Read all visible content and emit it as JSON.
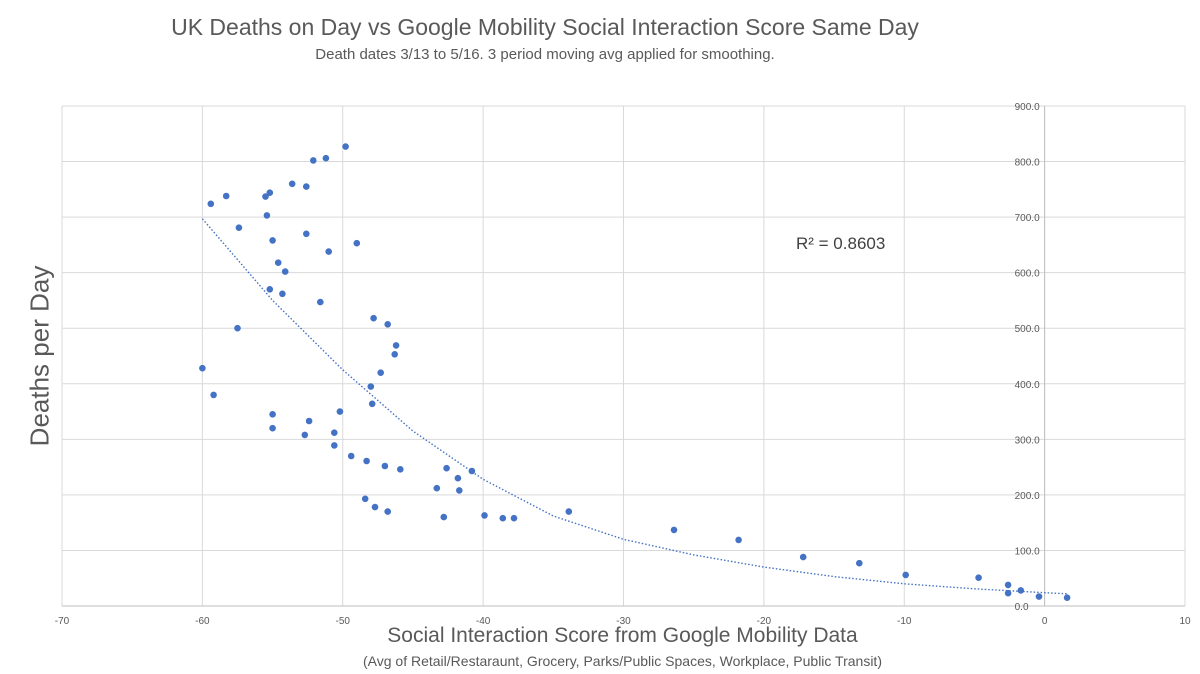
{
  "chart_data": {
    "type": "scatter",
    "title": "UK Deaths on Day vs Google Mobility Social Interaction Score Same Day",
    "subtitle": "Death dates 3/13 to 5/16.  3 period moving avg applied for smoothing.",
    "xlabel": "Social Interaction Score from Google Mobility Data",
    "xlabel_sub": "(Avg of Retail/Restaraunt, Grocery, Parks/Public Spaces, Workplace, Public Transit)",
    "ylabel": "Deaths per Day",
    "xlim": [
      -70,
      10
    ],
    "ylim": [
      0,
      900
    ],
    "x_ticks": [
      -70,
      -60,
      -50,
      -40,
      -30,
      -20,
      -10,
      0,
      10
    ],
    "x_tick_labels": [
      "-70",
      "-60",
      "-50",
      "-40",
      "-30",
      "-20",
      "-10",
      "0",
      "10"
    ],
    "y_ticks": [
      0,
      100,
      200,
      300,
      400,
      500,
      600,
      700,
      800,
      900
    ],
    "y_tick_labels": [
      "0.0",
      "100.0",
      "200.0",
      "300.0",
      "400.0",
      "500.0",
      "600.0",
      "700.0",
      "800.0",
      "900.0"
    ],
    "y_axis_position": "right",
    "grid": true,
    "point_color": "#4472c4",
    "trendline_color": "#4472c4",
    "trendline": {
      "type": "exponential",
      "label": "R² = 0.8603",
      "points": [
        [
          -60,
          697
        ],
        [
          -55,
          550
        ],
        [
          -50,
          425
        ],
        [
          -45,
          315
        ],
        [
          -40,
          228
        ],
        [
          -35,
          162
        ],
        [
          -30,
          120
        ],
        [
          -25,
          92
        ],
        [
          -20,
          70
        ],
        [
          -15,
          53
        ],
        [
          -10,
          40
        ],
        [
          -5,
          31
        ],
        [
          0,
          24
        ],
        [
          1.6,
          22
        ]
      ]
    },
    "points": [
      [
        -60.0,
        428
      ],
      [
        -59.2,
        380
      ],
      [
        -59.4,
        724
      ],
      [
        -58.3,
        738
      ],
      [
        -57.5,
        500
      ],
      [
        -57.4,
        681
      ],
      [
        -55.5,
        737
      ],
      [
        -55.2,
        744
      ],
      [
        -55.4,
        703
      ],
      [
        -55.0,
        658
      ],
      [
        -55.2,
        570
      ],
      [
        -55.0,
        345
      ],
      [
        -55.0,
        320
      ],
      [
        -54.6,
        618
      ],
      [
        -54.3,
        562
      ],
      [
        -54.1,
        602
      ],
      [
        -53.6,
        760
      ],
      [
        -52.6,
        755
      ],
      [
        -52.6,
        670
      ],
      [
        -52.7,
        308
      ],
      [
        -52.4,
        333
      ],
      [
        -52.1,
        802
      ],
      [
        -51.6,
        547
      ],
      [
        -51.2,
        806
      ],
      [
        -51.0,
        638
      ],
      [
        -50.6,
        312
      ],
      [
        -50.6,
        289
      ],
      [
        -50.2,
        350
      ],
      [
        -49.8,
        827
      ],
      [
        -49.4,
        270
      ],
      [
        -49.0,
        653
      ],
      [
        -48.4,
        193
      ],
      [
        -48.3,
        261
      ],
      [
        -48.0,
        395
      ],
      [
        -47.9,
        364
      ],
      [
        -47.8,
        518
      ],
      [
        -47.7,
        178
      ],
      [
        -47.3,
        420
      ],
      [
        -47.0,
        252
      ],
      [
        -46.8,
        507
      ],
      [
        -46.8,
        170
      ],
      [
        -46.3,
        453
      ],
      [
        -46.2,
        469
      ],
      [
        -45.9,
        246
      ],
      [
        -43.3,
        212
      ],
      [
        -42.8,
        160
      ],
      [
        -42.6,
        248
      ],
      [
        -41.8,
        230
      ],
      [
        -41.7,
        208
      ],
      [
        -40.8,
        243
      ],
      [
        -39.9,
        163
      ],
      [
        -38.6,
        158
      ],
      [
        -37.8,
        158
      ],
      [
        -33.9,
        170
      ],
      [
        -26.4,
        137
      ],
      [
        -21.8,
        119
      ],
      [
        -17.2,
        88
      ],
      [
        -13.2,
        77
      ],
      [
        -9.9,
        56
      ],
      [
        -4.7,
        51
      ],
      [
        -2.6,
        38
      ],
      [
        -2.6,
        23
      ],
      [
        -1.7,
        28
      ],
      [
        -0.4,
        17
      ],
      [
        1.6,
        15
      ]
    ]
  }
}
